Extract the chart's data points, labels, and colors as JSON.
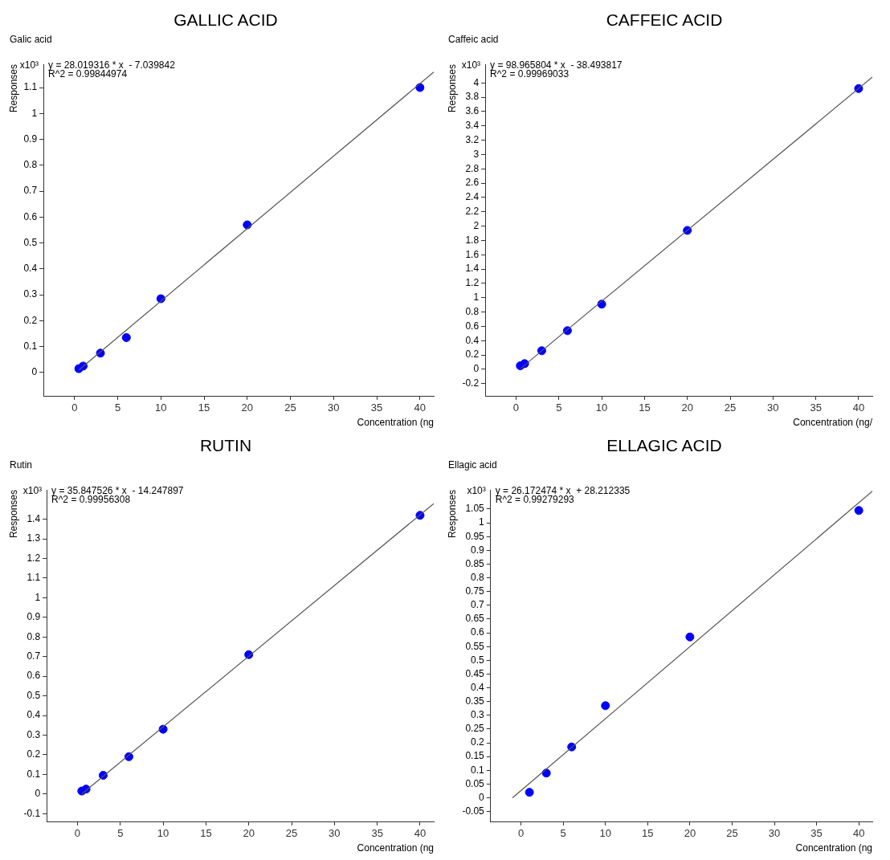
{
  "chart_data": [
    {
      "type": "scatter",
      "title": "GALLIC ACID",
      "subtitle": "Galic acid",
      "ylabel": "Responses",
      "xlabel": "Concentration (ng",
      "annotations": [
        "x10³",
        "y = 28.019316 * x  - 7.039842",
        "R^2 = 0.99844974"
      ],
      "xlim": [
        -3.6,
        41.6
      ],
      "xticks": [
        0,
        5,
        10,
        15,
        20,
        25,
        30,
        35,
        40
      ],
      "ylim": [
        -0.09,
        1.19
      ],
      "yticks": [
        0,
        0.1,
        0.2,
        0.3,
        0.4,
        0.5,
        0.6,
        0.7,
        0.8,
        0.9,
        1,
        1.1
      ],
      "series": [
        {
          "type": "line",
          "marker": "none",
          "color": "#555555",
          "x": [
            0.5,
            41.6
          ],
          "values": [
            0.01,
            1.16
          ]
        },
        {
          "type": "scatter",
          "marker": "circle",
          "color": "#0000ff",
          "x": [
            0.5,
            1,
            3,
            6,
            10,
            20,
            40
          ],
          "values": [
            0.015,
            0.025,
            0.075,
            0.135,
            0.285,
            0.57,
            1.1
          ]
        }
      ]
    },
    {
      "type": "scatter",
      "title": "CAFFEIC ACID",
      "subtitle": "Caffeic acid",
      "ylabel": "Responses",
      "xlabel": "Concentration (ng/",
      "annotations": [
        "x10³",
        "y = 98.965804 * x  - 38.493817",
        "R^2 = 0.99969033"
      ],
      "xlim": [
        -3.6,
        41.6
      ],
      "xticks": [
        0,
        5,
        10,
        15,
        20,
        25,
        30,
        35,
        40
      ],
      "ylim": [
        -0.37,
        4.26
      ],
      "yticks": [
        -0.2,
        0,
        0.2,
        0.4,
        0.6,
        0.8,
        1,
        1.2,
        1.4,
        1.6,
        1.8,
        2,
        2.2,
        2.4,
        2.6,
        2.8,
        3,
        3.2,
        3.4,
        3.6,
        3.8,
        4
      ],
      "series": [
        {
          "type": "line",
          "marker": "none",
          "color": "#555555",
          "x": [
            0.5,
            41.6
          ],
          "values": [
            0.01,
            4.08
          ]
        },
        {
          "type": "scatter",
          "marker": "circle",
          "color": "#0000ff",
          "x": [
            0.5,
            1,
            3,
            6,
            10,
            20,
            40
          ],
          "values": [
            0.05,
            0.08,
            0.26,
            0.54,
            0.91,
            1.94,
            3.92
          ]
        }
      ]
    },
    {
      "type": "scatter",
      "title": "RUTIN",
      "subtitle": "Rutin",
      "ylabel": "Responses",
      "xlabel": "Concentration (ng",
      "annotations": [
        "x10³",
        "y = 35.847526 * x  - 14.247897",
        "R^2 = 0.99956308"
      ],
      "xlim": [
        -3.6,
        41.6
      ],
      "xticks": [
        0,
        5,
        10,
        15,
        20,
        25,
        30,
        35,
        40
      ],
      "ylim": [
        -0.14,
        1.55
      ],
      "yticks": [
        -0.1,
        0,
        0.1,
        0.2,
        0.3,
        0.4,
        0.5,
        0.6,
        0.7,
        0.8,
        0.9,
        1,
        1.1,
        1.2,
        1.3,
        1.4
      ],
      "series": [
        {
          "type": "line",
          "marker": "none",
          "color": "#555555",
          "x": [
            0.5,
            41.6
          ],
          "values": [
            0,
            1.48
          ]
        },
        {
          "type": "scatter",
          "marker": "circle",
          "color": "#0000ff",
          "x": [
            0.5,
            1,
            3,
            6,
            10,
            20,
            40
          ],
          "values": [
            0.015,
            0.025,
            0.095,
            0.19,
            0.33,
            0.71,
            1.42
          ]
        }
      ]
    },
    {
      "type": "scatter",
      "title": "ELLAGIC ACID",
      "subtitle": "Ellagic acid",
      "ylabel": "Responses",
      "xlabel": "Concentration (ng",
      "annotations": [
        "x10³",
        "y = 26.172474 * x  + 28.212335",
        "R^2 = 0.99279293"
      ],
      "xlim": [
        -3.6,
        41.6
      ],
      "xticks": [
        0,
        5,
        10,
        15,
        20,
        25,
        30,
        35,
        40
      ],
      "ylim": [
        -0.086,
        1.12
      ],
      "yticks": [
        -0.05,
        0,
        0.05,
        0.1,
        0.15,
        0.2,
        0.25,
        0.3,
        0.35,
        0.4,
        0.45,
        0.5,
        0.55,
        0.6,
        0.65,
        0.7,
        0.75,
        0.8,
        0.85,
        0.9,
        0.95,
        1,
        1.05
      ],
      "series": [
        {
          "type": "line",
          "marker": "none",
          "color": "#555555",
          "x": [
            -1,
            41.6
          ],
          "values": [
            0,
            1.115
          ]
        },
        {
          "type": "scatter",
          "marker": "circle",
          "color": "#0000ff",
          "x": [
            1,
            3,
            6,
            10,
            20,
            40
          ],
          "values": [
            0.02,
            0.09,
            0.185,
            0.335,
            0.585,
            1.045
          ]
        }
      ]
    }
  ]
}
